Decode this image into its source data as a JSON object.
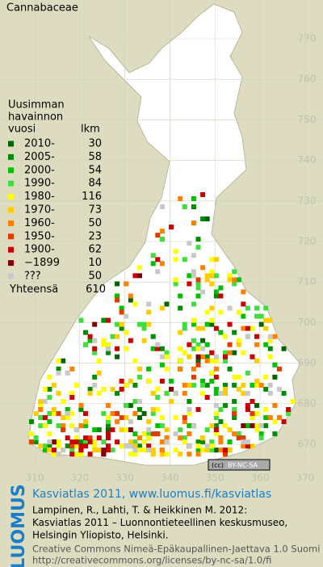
{
  "title": "Cannabaceae",
  "legend": {
    "heading": [
      "Uusimman",
      "havainnon",
      "vuosi"
    ],
    "count_heading": "lkm",
    "items": [
      {
        "label": "2010-",
        "count": 30,
        "color": "#006400"
      },
      {
        "label": "2005-",
        "count": 58,
        "color": "#008c00"
      },
      {
        "label": "2000-",
        "count": 54,
        "color": "#00c000"
      },
      {
        "label": "1990-",
        "count": 84,
        "color": "#40dc40"
      },
      {
        "label": "1980-",
        "count": 116,
        "color": "#ffff00"
      },
      {
        "label": "1970-",
        "count": 73,
        "color": "#ffcc00"
      },
      {
        "label": "1960-",
        "count": 50,
        "color": "#ff8000"
      },
      {
        "label": "1950-",
        "count": 23,
        "color": "#e03c00"
      },
      {
        "label": "1900-",
        "count": 62,
        "color": "#c80000"
      },
      {
        "label": "−1899",
        "count": 10,
        "color": "#800000"
      },
      {
        "label": "???",
        "count": 50,
        "color": "#c8c8c8"
      }
    ],
    "total_label": "Yhteensä",
    "total": 610
  },
  "axes": {
    "x_ticks": [
      310,
      320,
      330,
      340,
      350,
      360,
      370
    ],
    "y_ticks": [
      670,
      680,
      690,
      700,
      710,
      720,
      730,
      740,
      750,
      760,
      770
    ]
  },
  "license_badge": "BY-NC-SA",
  "footer": {
    "brand": "LUOMUS",
    "headline": "Kasviatlas 2011, www.luomus.fi/kasviatlas",
    "citation": [
      "Lampinen, R., Lahti, T. & Heikkinen M. 2012:",
      "Kasviatlas 2011 – Luonnontieteellinen keskusmuseo,",
      "Helsingin Yliopisto, Helsinki."
    ],
    "license": [
      "Creative Commons Nimeä-Epäkaupallinen-Jaettava 1.0 Suomi",
      "http://creativecommons.org/licenses/by-nc-sa/1.0/fi"
    ]
  }
}
